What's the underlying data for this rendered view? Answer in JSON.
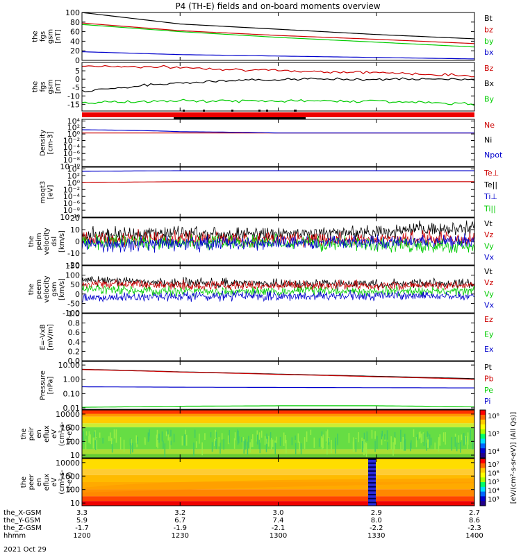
{
  "title": "P4 (TH-E) fields and on-board moments overview",
  "date": "2021 Oct 29",
  "panels": [
    {
      "id": "fgs-mag",
      "ylabel": [
        "the",
        "fgs",
        "gsm",
        "[nT]"
      ],
      "ticks": [
        "100",
        "80",
        "60",
        "40",
        "20",
        "0"
      ],
      "tickVals": [
        100,
        80,
        60,
        40,
        20,
        0
      ],
      "ylim": [
        0,
        100
      ],
      "log": false,
      "legend": [
        {
          "text": "Bt",
          "color": "#000000"
        },
        {
          "text": "bz",
          "color": "#cc0000"
        },
        {
          "text": "by",
          "color": "#00cc00"
        },
        {
          "text": "bx",
          "color": "#0000cc"
        }
      ]
    },
    {
      "id": "fgs-gse",
      "ylabel": [
        "the",
        "fgs",
        "gsm",
        "[nT]"
      ],
      "ticks": [
        "5",
        "0",
        "-5",
        "-10",
        "-15"
      ],
      "tickVals": [
        5,
        0,
        -5,
        -10,
        -15
      ],
      "ylim": [
        -19,
        10
      ],
      "log": false,
      "legend": [
        {
          "text": "Bz",
          "color": "#cc0000"
        },
        {
          "text": "Bx",
          "color": "#000000"
        },
        {
          "text": "By",
          "color": "#00cc00"
        }
      ]
    },
    {
      "id": "density",
      "ylabel": [
        "Density",
        "[cm-3]"
      ],
      "ticks": [
        "10⁴",
        "10²",
        "10⁰",
        "10⁻²",
        "10⁻⁴",
        "10⁻⁶",
        "10⁻⁸",
        "10⁻¹⁰"
      ],
      "tickVals": [
        4,
        2,
        0,
        -2,
        -4,
        -6,
        -8,
        -10
      ],
      "ylim": [
        -10,
        4.5
      ],
      "log": true,
      "legend": [
        {
          "text": "Ne",
          "color": "#cc0000"
        },
        {
          "text": "Ni",
          "color": "#000000"
        },
        {
          "text": "Npot",
          "color": "#0000cc"
        }
      ]
    },
    {
      "id": "temp",
      "ylabel": [
        "moqt3",
        "[eV]"
      ],
      "ticks": [
        "10⁴",
        "10²",
        "10⁰",
        "10⁻²",
        "10⁻⁴",
        "10⁻⁶",
        "10⁻⁸",
        "10⁻¹⁰"
      ],
      "tickVals": [
        4,
        2,
        0,
        -2,
        -4,
        -6,
        -8,
        -10
      ],
      "ylim": [
        -10,
        4.5
      ],
      "log": true,
      "legend": [
        {
          "text": "Te⊥",
          "color": "#cc0000"
        },
        {
          "text": "Te||",
          "color": "#000000"
        },
        {
          "text": "Ti⊥",
          "color": "#0000cc"
        },
        {
          "text": "Ti||",
          "color": "#00cc00"
        }
      ]
    },
    {
      "id": "peim-vel",
      "ylabel": [
        "the",
        "peim",
        "velocity",
        "dsl",
        "[km/s]"
      ],
      "ticks": [
        "20",
        "10",
        "0",
        "-10",
        "-20"
      ],
      "tickVals": [
        20,
        10,
        0,
        -10,
        -20
      ],
      "ylim": [
        -20,
        20
      ],
      "log": false,
      "legend": [
        {
          "text": "Vt",
          "color": "#000000"
        },
        {
          "text": "Vz",
          "color": "#cc0000"
        },
        {
          "text": "Vy",
          "color": "#00cc00"
        },
        {
          "text": "Vx",
          "color": "#0000cc"
        }
      ]
    },
    {
      "id": "peem-vel",
      "ylabel": [
        "the",
        "peem",
        "velocity",
        "gsm",
        "[km/s]"
      ],
      "ticks": [
        "150",
        "100",
        "50",
        "0",
        "-50",
        "-100"
      ],
      "tickVals": [
        150,
        100,
        50,
        0,
        -50,
        -100
      ],
      "ylim": [
        -100,
        150
      ],
      "log": false,
      "legend": [
        {
          "text": "Vt",
          "color": "#000000"
        },
        {
          "text": "Vz",
          "color": "#cc0000"
        },
        {
          "text": "Vy",
          "color": "#00cc00"
        },
        {
          "text": "Vx",
          "color": "#0000cc"
        }
      ]
    },
    {
      "id": "efield",
      "ylabel": [
        "E=-VxB",
        "[mV/m]"
      ],
      "ticks": [
        "1.0",
        "0.8",
        "0.6",
        "0.4",
        "0.2",
        "0.0"
      ],
      "tickVals": [
        1,
        0.8,
        0.6,
        0.4,
        0.2,
        0
      ],
      "ylim": [
        0,
        1
      ],
      "log": false,
      "legend": [
        {
          "text": "Ez",
          "color": "#cc0000"
        },
        {
          "text": "Ey",
          "color": "#00cc00"
        },
        {
          "text": "Ex",
          "color": "#0000cc"
        }
      ]
    },
    {
      "id": "pressure",
      "ylabel": [
        "Pressure",
        "[nPa]"
      ],
      "ticks": [
        "10.00",
        "1.00",
        "0.10",
        "0.01"
      ],
      "tickVals": [
        1,
        0,
        -1,
        -2
      ],
      "ylim": [
        -2.1,
        1.25
      ],
      "log": true,
      "legend": [
        {
          "text": "Pt",
          "color": "#000000"
        },
        {
          "text": "Pb",
          "color": "#cc0000"
        },
        {
          "text": "Pe",
          "color": "#00cc00"
        },
        {
          "text": "Pi",
          "color": "#0000cc"
        }
      ]
    },
    {
      "id": "peir",
      "ylabel": [
        "the",
        "peir",
        "en",
        "eflux",
        "eV",
        "(cm²-s-",
        "sr-eV)"
      ],
      "ticks": [
        "10000",
        "1000",
        "100",
        "10"
      ],
      "tickVals": [
        4,
        3,
        2,
        1
      ],
      "ylim": [
        0.8,
        4.3
      ],
      "log": true,
      "legend": []
    },
    {
      "id": "peer",
      "ylabel": [
        "the",
        "peer",
        "en",
        "eflux",
        "eV",
        "(cm²-s-",
        "sr-eV)"
      ],
      "ticks": [
        "10000",
        "1000",
        "100",
        "10"
      ],
      "tickVals": [
        4,
        3,
        2,
        1
      ],
      "ylim": [
        0.8,
        4.3
      ],
      "log": true,
      "legend": []
    }
  ],
  "colorbar1": {
    "ticks": [
      "10⁶",
      "10⁵",
      "10⁴"
    ]
  },
  "colorbar2": {
    "ticks": [
      "10⁷",
      "10⁶",
      "10⁵",
      "10⁴",
      "10³"
    ]
  },
  "colorbarLabel": "[eV/(cm²-s-sr-eV)] (All Qs)]",
  "xaxis": {
    "rowLabels": [
      "the_X-GSM",
      "the_Y-GSM",
      "the_Z-GSM",
      "hhmm"
    ],
    "columns": [
      {
        "x": "3.3",
        "y": "5.9",
        "z": "-1.7",
        "t": "1200"
      },
      {
        "x": "3.2",
        "y": "6.7",
        "z": "-1.9",
        "t": "1230"
      },
      {
        "x": "3.0",
        "y": "7.4",
        "z": "-2.1",
        "t": "1300"
      },
      {
        "x": "2.9",
        "y": "8.0",
        "z": "-2.2",
        "t": "1330"
      },
      {
        "x": "2.7",
        "y": "8.6",
        "z": "-2.3",
        "t": "1400"
      }
    ]
  },
  "chart_data": [
    {
      "type": "line",
      "title": "the fgs gsm",
      "ylabel": "[nT]",
      "x": [
        "1200",
        "1230",
        "1300",
        "1330",
        "1400"
      ],
      "ylim": [
        0,
        100
      ],
      "series": [
        {
          "name": "Bt",
          "values": [
            100,
            76,
            65,
            54,
            45
          ]
        },
        {
          "name": "bz",
          "values": [
            78,
            62,
            52,
            44,
            35
          ]
        },
        {
          "name": "by",
          "values": [
            75,
            60,
            48,
            38,
            28
          ]
        },
        {
          "name": "bx",
          "values": [
            18,
            12,
            9,
            6,
            3
          ]
        }
      ]
    },
    {
      "type": "line",
      "ylabel": "[nT]",
      "x": [
        "1200",
        "1230",
        "1300",
        "1330",
        "1400"
      ],
      "ylim": [
        -19,
        10
      ],
      "series": [
        {
          "name": "Bz",
          "values": [
            8,
            7,
            5,
            4,
            2
          ]
        },
        {
          "name": "Bx",
          "values": [
            -7,
            -2,
            0,
            0,
            0
          ]
        },
        {
          "name": "By",
          "values": [
            -14,
            -13,
            -13,
            -13,
            -15
          ]
        }
      ]
    },
    {
      "type": "line",
      "ylabel": "Density [cm-3]",
      "log": true,
      "x": [
        "1200",
        "1230",
        "1300",
        "1330",
        "1400"
      ],
      "series": [
        {
          "name": "Ne",
          "values": [
            2,
            2,
            2,
            2,
            2
          ]
        },
        {
          "name": "Npot",
          "values": [
            20,
            5,
            2,
            2,
            2
          ]
        }
      ]
    },
    {
      "type": "line",
      "ylabel": "moqt3 [eV]",
      "log": true,
      "x": [
        "1200",
        "1230",
        "1300",
        "1330",
        "1400"
      ],
      "series": [
        {
          "name": "Te⊥",
          "values": [
            1,
            2,
            2,
            2,
            2
          ]
        },
        {
          "name": "Ti⊥",
          "values": [
            2000,
            3000,
            3000,
            3000,
            3000
          ]
        }
      ]
    },
    {
      "type": "line",
      "ylabel": "[km/s]",
      "x": [
        "1200",
        "1230",
        "1300",
        "1330",
        "1400"
      ],
      "ylim": [
        -20,
        20
      ],
      "series": [
        {
          "name": "Vt",
          "values": [
            6,
            7,
            6,
            8,
            12
          ]
        },
        {
          "name": "Vz",
          "values": [
            2,
            2,
            2,
            2,
            2
          ]
        },
        {
          "name": "Vy",
          "values": [
            0,
            -1,
            -1,
            -2,
            -6
          ]
        },
        {
          "name": "Vx",
          "values": [
            -3,
            -2,
            -1,
            -1,
            0
          ]
        }
      ]
    },
    {
      "type": "line",
      "ylabel": "[km/s]",
      "x": [
        "1200",
        "1230",
        "1300",
        "1330",
        "1400"
      ],
      "ylim": [
        -100,
        150
      ],
      "series": [
        {
          "name": "Vt",
          "values": [
            75,
            60,
            55,
            55,
            55
          ]
        },
        {
          "name": "Vz",
          "values": [
            55,
            45,
            45,
            45,
            45
          ]
        },
        {
          "name": "Vy",
          "values": [
            25,
            15,
            15,
            15,
            15
          ]
        },
        {
          "name": "Vx",
          "values": [
            -25,
            -10,
            -10,
            -10,
            -10
          ]
        }
      ]
    },
    {
      "type": "line",
      "ylabel": "E=-VxB [mV/m]",
      "x": [
        "1200",
        "1230",
        "1300",
        "1330",
        "1400"
      ],
      "ylim": [
        0,
        1
      ],
      "series": []
    },
    {
      "type": "line",
      "ylabel": "Pressure [nPa]",
      "log": true,
      "x": [
        "1200",
        "1230",
        "1300",
        "1330",
        "1400"
      ],
      "series": [
        {
          "name": "Pt",
          "values": [
            5,
            3.3,
            2.3,
            1.6,
            1.1
          ]
        },
        {
          "name": "Pb",
          "values": [
            4.8,
            3.2,
            2.2,
            1.5,
            1.0
          ]
        },
        {
          "name": "Pe",
          "values": [
            0.011,
            0.013,
            0.014,
            0.014,
            0.012
          ]
        },
        {
          "name": "Pi",
          "values": [
            0.3,
            0.28,
            0.27,
            0.26,
            0.25
          ]
        }
      ]
    },
    {
      "type": "heatmap",
      "ylabel": "the peir en eflux",
      "yticks": [
        "10000",
        "1000",
        "100",
        "10"
      ]
    },
    {
      "type": "heatmap",
      "ylabel": "the peer en eflux",
      "yticks": [
        "10000",
        "1000",
        "100",
        "10"
      ]
    }
  ]
}
